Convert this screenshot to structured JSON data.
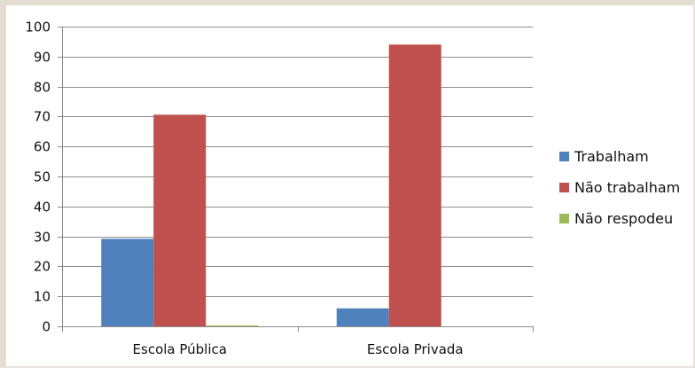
{
  "chart_data": {
    "type": "bar",
    "categories": [
      "Escola Pública",
      "Escola Privada"
    ],
    "series": [
      {
        "name": "Trabalham",
        "values": [
          29.2,
          6
        ],
        "color": "#4f81bd"
      },
      {
        "name": "Não trabalham",
        "values": [
          70.6,
          94
        ],
        "color": "#c0504d"
      },
      {
        "name": "Não respodeu",
        "values": [
          0.3,
          0
        ],
        "color": "#9bbb59"
      }
    ],
    "ylim": [
      0,
      100
    ],
    "yticks": [
      0,
      10,
      20,
      30,
      40,
      50,
      60,
      70,
      80,
      90,
      100
    ],
    "grid": true,
    "legend": "right"
  }
}
